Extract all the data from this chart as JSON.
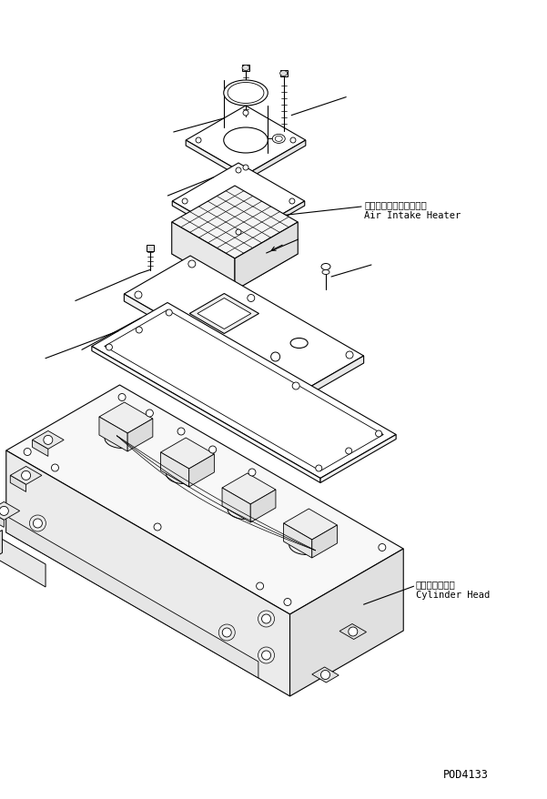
{
  "background_color": "#ffffff",
  "line_color": "#000000",
  "label_air_intake_heater_jp": "エアーインテークヒータ",
  "label_air_intake_heater_en": "Air Intake Heater",
  "label_cylinder_head_jp": "シリンダヘッド",
  "label_cylinder_head_en": "Cylinder Head",
  "part_number": "POD4133",
  "fig_width": 6.01,
  "fig_height": 8.79,
  "dpi": 100
}
